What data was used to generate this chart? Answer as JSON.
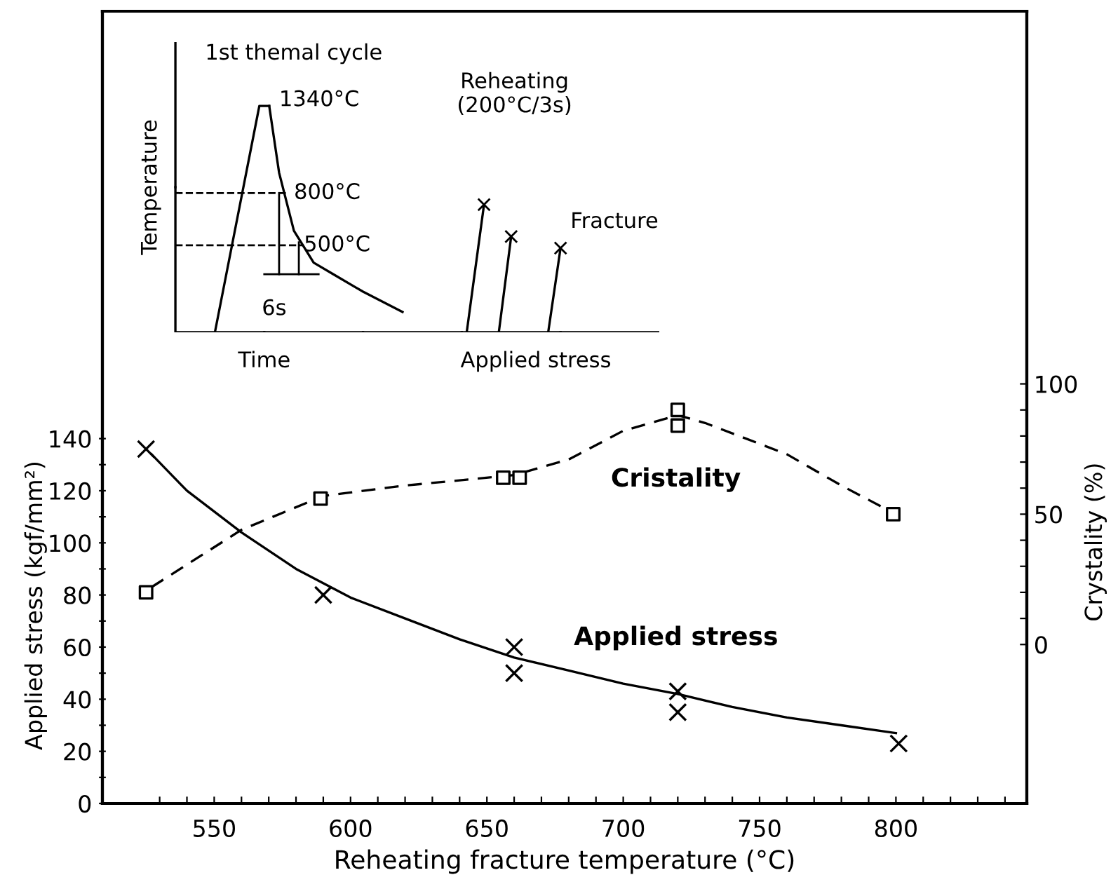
{
  "chart_data": {
    "type": "scatter",
    "xlabel": "Reheating fracture temperature (°C)",
    "ylabel": "Applied stress (kgf/mm²)",
    "y2label": "Crystality (%)",
    "xlim": [
      509,
      848
    ],
    "xticks": [
      {
        "value": 530,
        "label": null
      },
      {
        "value": 540,
        "label": null
      },
      550,
      {
        "value": 560,
        "label": null
      },
      {
        "value": 570,
        "label": null
      },
      {
        "value": 580,
        "label": null
      },
      {
        "value": 590,
        "label": null
      },
      600,
      {
        "value": 610,
        "label": null
      },
      {
        "value": 620,
        "label": null
      },
      {
        "value": 630,
        "label": null
      },
      {
        "value": 640,
        "label": null
      },
      650,
      {
        "value": 660,
        "label": null
      },
      {
        "value": 670,
        "label": null
      },
      {
        "value": 680,
        "label": null
      },
      {
        "value": 690,
        "label": null
      },
      700,
      {
        "value": 710,
        "label": null
      },
      {
        "value": 720,
        "label": null
      },
      {
        "value": 730,
        "label": null
      },
      {
        "value": 740,
        "label": null
      },
      750,
      {
        "value": 760,
        "label": null
      },
      {
        "value": 770,
        "label": null
      },
      {
        "value": 780,
        "label": null
      },
      {
        "value": 790,
        "label": null
      },
      800,
      {
        "value": 810,
        "label": null
      },
      {
        "value": 820,
        "label": null
      },
      {
        "value": 830,
        "label": null
      },
      {
        "value": 840,
        "label": null
      }
    ],
    "ylim": [
      0,
      304
    ],
    "yticks": [
      0,
      {
        "value": 10,
        "label": null
      },
      20,
      {
        "value": 30,
        "label": null
      },
      40,
      {
        "value": 50,
        "label": null
      },
      60,
      {
        "value": 70,
        "label": null
      },
      80,
      {
        "value": 90,
        "label": null
      },
      100,
      {
        "value": 110,
        "label": null
      },
      120,
      {
        "value": 130,
        "label": null
      },
      140
    ],
    "y2lim": [
      -61,
      243
    ],
    "y2ticks": [
      0,
      {
        "value": 10,
        "label": null
      },
      {
        "value": 20,
        "label": null
      },
      {
        "value": 30,
        "label": null
      },
      {
        "value": 40,
        "label": null
      },
      50,
      {
        "value": 60,
        "label": null
      },
      {
        "value": 70,
        "label": null
      },
      {
        "value": 80,
        "label": null
      },
      {
        "value": 90,
        "label": null
      },
      100
    ],
    "grid": false,
    "legend": false,
    "series": [
      {
        "name": "Applied stress",
        "color": "#000000",
        "marker": "cross",
        "x": [
          525,
          590,
          660,
          660,
          720,
          720,
          801
        ],
        "values": [
          136,
          80,
          60,
          50,
          43,
          35,
          23
        ]
      },
      {
        "type": "line",
        "color": "#000000",
        "line_style": "solid",
        "marker": "none",
        "x": [
          527,
          540,
          560,
          580,
          600,
          620,
          640,
          660,
          680,
          700,
          720,
          740,
          760,
          780,
          800
        ],
        "values": [
          134,
          120,
          104,
          90,
          79,
          71,
          63,
          56,
          51,
          46,
          42,
          37,
          33,
          30,
          27
        ]
      },
      {
        "name": "Cristality",
        "axis": "y2",
        "color": "#000000",
        "marker": "square",
        "x": [
          525,
          589,
          656,
          662,
          720,
          720,
          799
        ],
        "values": [
          20,
          56,
          64,
          64,
          90,
          84,
          50
        ]
      },
      {
        "type": "line",
        "axis": "y2",
        "color": "#000000",
        "line_style": "dashed",
        "marker": "none",
        "x": [
          527,
          560,
          590,
          620,
          660,
          680,
          700,
          720,
          730,
          760,
          780,
          800
        ],
        "values": [
          22,
          44,
          57,
          61,
          65,
          71,
          82,
          88,
          85,
          73,
          61,
          50
        ]
      }
    ],
    "annotations": [
      "1st themal cycle",
      "1340°C",
      "800°C",
      "500°C",
      "6s",
      "Reheating\n(200°C/3s)",
      "Fracture",
      "Temperature",
      "Time",
      "Applied stress"
    ]
  }
}
